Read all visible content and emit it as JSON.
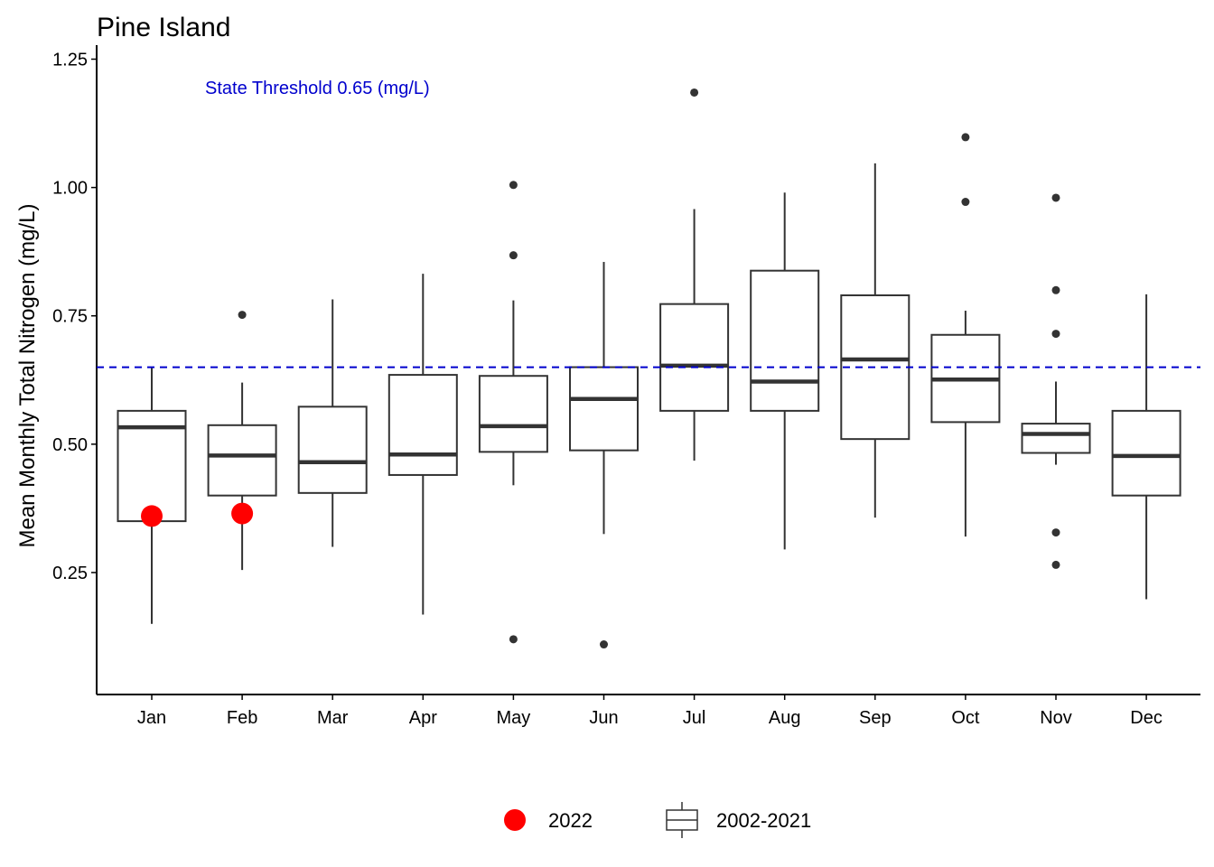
{
  "chart_data": {
    "type": "box",
    "title": "Pine Island",
    "xlabel": "",
    "ylabel": "Mean Monthly Total Nitrogen (mg/L)",
    "ylim": [
      0.03,
      1.25
    ],
    "yticks": [
      0.25,
      0.5,
      0.75,
      1.0,
      1.25
    ],
    "ytick_labels": [
      "0.25",
      "0.50",
      "0.75",
      "1.00",
      "1.25"
    ],
    "categories": [
      "Jan",
      "Feb",
      "Mar",
      "Apr",
      "May",
      "Jun",
      "Jul",
      "Aug",
      "Sep",
      "Oct",
      "Nov",
      "Dec"
    ],
    "threshold": {
      "value": 0.65,
      "label": "State Threshold 0.65 (mg/L)",
      "color": "#0000cd"
    },
    "grid": false,
    "legend_position": "bottom",
    "series": [
      {
        "name": "2002-2021",
        "kind": "boxplot",
        "boxes": [
          {
            "low": 0.15,
            "q1": 0.35,
            "median": 0.533,
            "q3": 0.565,
            "high": 0.65,
            "outliers": []
          },
          {
            "low": 0.255,
            "q1": 0.4,
            "median": 0.478,
            "q3": 0.537,
            "high": 0.62,
            "outliers": [
              0.752
            ]
          },
          {
            "low": 0.3,
            "q1": 0.405,
            "median": 0.465,
            "q3": 0.573,
            "high": 0.782,
            "outliers": []
          },
          {
            "low": 0.168,
            "q1": 0.44,
            "median": 0.48,
            "q3": 0.635,
            "high": 0.832,
            "outliers": []
          },
          {
            "low": 0.42,
            "q1": 0.485,
            "median": 0.535,
            "q3": 0.633,
            "high": 0.78,
            "outliers": [
              1.005,
              0.868,
              0.12
            ]
          },
          {
            "low": 0.325,
            "q1": 0.488,
            "median": 0.588,
            "q3": 0.65,
            "high": 0.855,
            "outliers": [
              0.11
            ]
          },
          {
            "low": 0.468,
            "q1": 0.565,
            "median": 0.653,
            "q3": 0.773,
            "high": 0.958,
            "outliers": [
              1.185
            ]
          },
          {
            "low": 0.295,
            "q1": 0.565,
            "median": 0.622,
            "q3": 0.838,
            "high": 0.99,
            "outliers": []
          },
          {
            "low": 0.357,
            "q1": 0.51,
            "median": 0.665,
            "q3": 0.79,
            "high": 1.047,
            "outliers": []
          },
          {
            "low": 0.32,
            "q1": 0.543,
            "median": 0.626,
            "q3": 0.713,
            "high": 0.76,
            "outliers": [
              1.098,
              0.972
            ]
          },
          {
            "low": 0.46,
            "q1": 0.483,
            "median": 0.52,
            "q3": 0.54,
            "high": 0.622,
            "outliers": [
              0.98,
              0.8,
              0.715,
              0.328,
              0.265
            ]
          },
          {
            "low": 0.198,
            "q1": 0.4,
            "median": 0.477,
            "q3": 0.565,
            "high": 0.792,
            "outliers": []
          }
        ]
      },
      {
        "name": "2022",
        "kind": "points",
        "color": "#ff0000",
        "x": [
          "Jan",
          "Feb"
        ],
        "y": [
          0.36,
          0.365
        ]
      }
    ],
    "legend": [
      {
        "label": "2022",
        "marker": "red-dot"
      },
      {
        "label": "2002-2021",
        "marker": "boxplot"
      }
    ]
  }
}
